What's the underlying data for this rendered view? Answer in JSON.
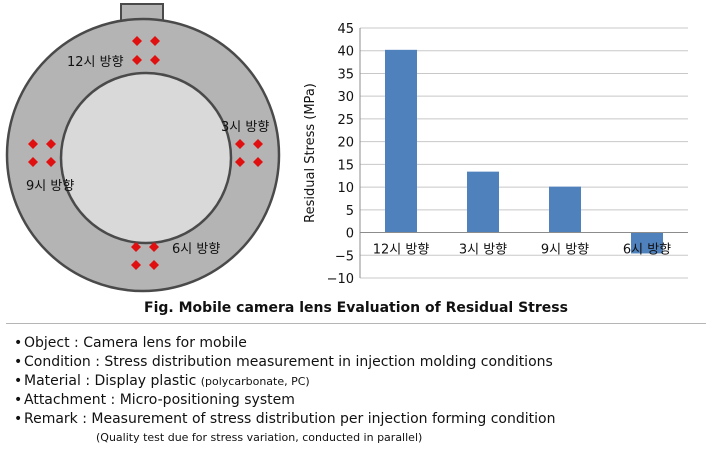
{
  "lens_diagram": {
    "labels": {
      "top": "12시 방향",
      "right": "3시 방향",
      "left": "9시 방향",
      "bottom": "6시 방향"
    },
    "marker_color": "#e01010",
    "ring_color": "#b4b4b4",
    "inner_color": "#d9d9d9"
  },
  "chart_data": {
    "type": "bar",
    "categories": [
      "12시 방향",
      "3시 방향",
      "9시 방향",
      "6시 방향"
    ],
    "values": [
      40.2,
      13.4,
      10.1,
      -4.6
    ],
    "ylabel": "Residual Stress (MPa)",
    "ylim": [
      -10,
      45
    ],
    "yticks": [
      45,
      40,
      35,
      30,
      25,
      20,
      15,
      10,
      5,
      0,
      -5,
      -10
    ],
    "bar_color": "#4f81bd",
    "grid": true
  },
  "caption": "Fig. Mobile camera lens Evaluation of Residual Stress",
  "info": {
    "object": "Object : Camera lens for mobile",
    "condition": "Condition : Stress distribution measurement in injection molding conditions",
    "material": "Material : Display plastic",
    "material_note": "(polycarbonate, PC)",
    "attachment": "Attachment : Micro-positioning system",
    "remark": "Remark : Measurement of stress distribution per injection forming condition",
    "remark_note": "(Quality test due for stress variation, conducted in parallel)"
  }
}
